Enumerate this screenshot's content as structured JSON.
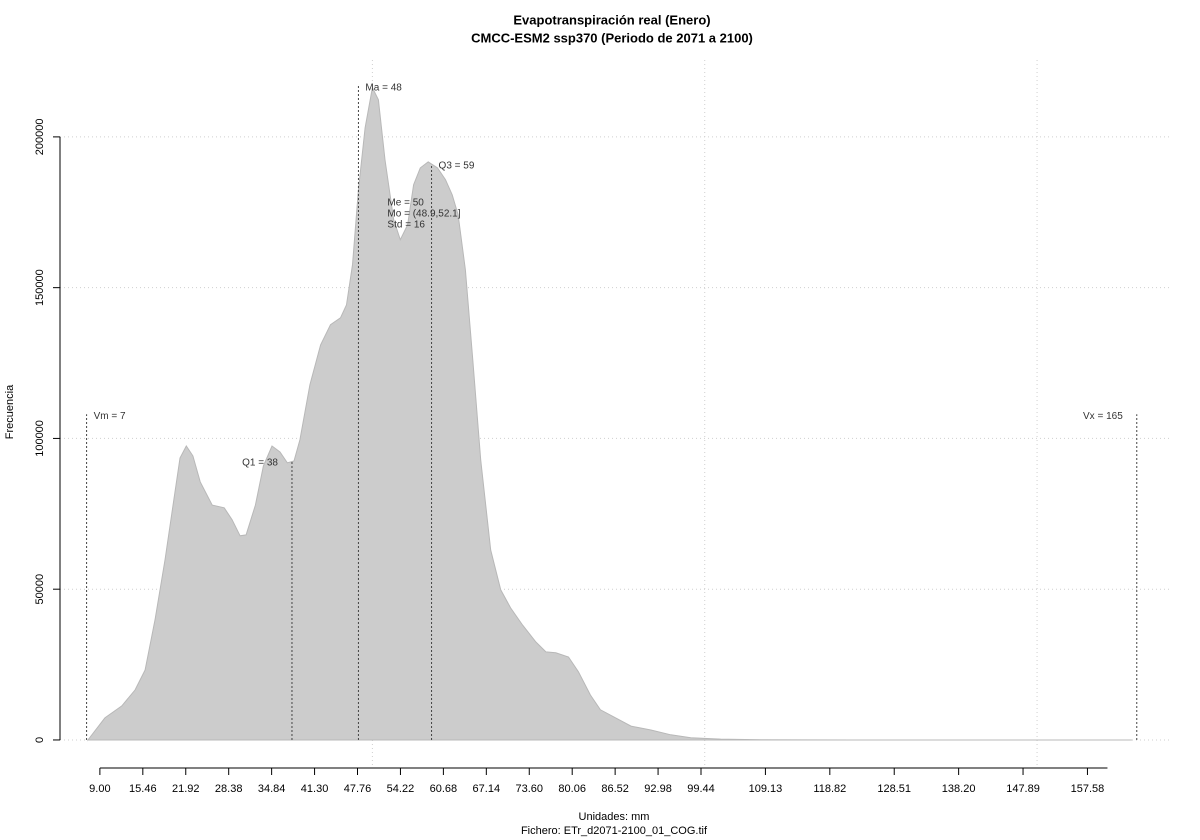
{
  "chart_data": {
    "type": "area",
    "title": "Evapotranspiración real (Enero)",
    "subtitle": "CMCC-ESM2 ssp370 (Periodo de 2071 a 2100)",
    "y_label": "Frecuencia",
    "x_label": "Unidades: mm",
    "footer": "Fichero: ETr_d2071-2100_01_COG.tif",
    "color": "#cccccc",
    "x": [
      7.2,
      9.75,
      12.3,
      14.3,
      15.8,
      17.3,
      18.8,
      20.3,
      21.05,
      22.0,
      23.0,
      24.1,
      25.9,
      27.7,
      28.9,
      30.1,
      31.0,
      32.4,
      33.6,
      34.9,
      36.1,
      37.2,
      38.2,
      39.1,
      40.6,
      42.2,
      43.7,
      45.2,
      46.1,
      47.0,
      47.9,
      48.9,
      50.0,
      50.9,
      51.9,
      53.2,
      54.2,
      55.3,
      56.2,
      57.2,
      58.4,
      59.8,
      61.0,
      62.0,
      62.9,
      64.0,
      65.1,
      66.3,
      67.8,
      69.3,
      70.8,
      72.6,
      74.6,
      76.1,
      77.6,
      79.5,
      81.0,
      82.8,
      84.3,
      86.6,
      88.9,
      91.9,
      94.9,
      97.9,
      102.4,
      108.5,
      122,
      164.2
    ],
    "values": [
      0,
      7300,
      11300,
      16600,
      23200,
      39800,
      59700,
      82300,
      93500,
      97500,
      94200,
      85600,
      77900,
      77000,
      73000,
      67700,
      68000,
      77900,
      90900,
      97500,
      95500,
      91900,
      92500,
      99500,
      117800,
      131000,
      137700,
      140000,
      144300,
      157600,
      182400,
      203000,
      216300,
      212300,
      192400,
      172500,
      165900,
      170800,
      184100,
      189700,
      191700,
      189700,
      185800,
      180800,
      174200,
      155900,
      126000,
      92900,
      63000,
      49800,
      43800,
      38100,
      32500,
      29200,
      28900,
      27500,
      22600,
      14900,
      10000,
      7300,
      4600,
      3300,
      1700,
      700,
      300,
      100,
      0,
      0
    ],
    "markers": [
      {
        "label": "Vm = 7",
        "x": 7,
        "top": 108000
      },
      {
        "label": "Q1 = 38",
        "x": 37.9,
        "top": 92500
      },
      {
        "label": "Ma = 48",
        "x": 47.9,
        "top": 217000
      },
      {
        "label": "Q3 = 59",
        "x": 58.9,
        "top": 191000
      },
      {
        "label": "Vx = 165",
        "x": 165,
        "top": 108000
      }
    ],
    "stats": [
      "Me = 50",
      "Mo = (48.9,52.1]",
      "Std = 16"
    ],
    "xlim": [
      3,
      170
    ],
    "ylim": [
      -9300,
      225500
    ],
    "xticks": [
      {
        "value": 9,
        "label": "9.00"
      },
      15.46,
      21.92,
      28.38,
      34.84,
      {
        "value": 41.3,
        "label": "41.30"
      },
      47.76,
      54.22,
      60.68,
      67.14,
      {
        "value": 73.6,
        "label": "73.60"
      },
      80.06,
      86.52,
      92.98,
      99.44,
      109.13,
      118.82,
      128.51,
      {
        "value": 138.2,
        "label": "138.20"
      },
      147.89,
      157.58
    ],
    "yticks": [
      0,
      50000,
      100000,
      150000,
      200000
    ],
    "xgrid": [
      50,
      100,
      150
    ],
    "grid": true
  }
}
